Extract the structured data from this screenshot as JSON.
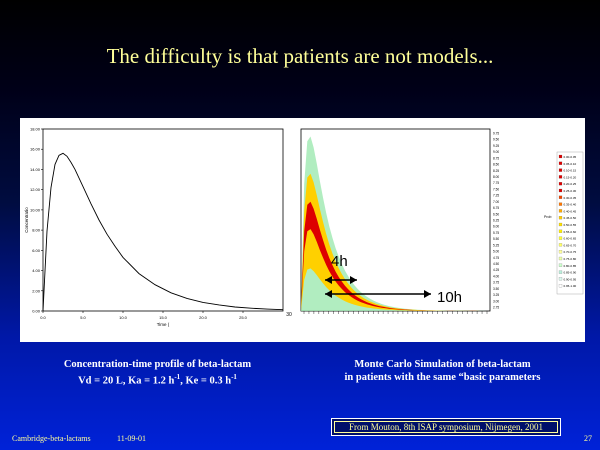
{
  "slide": {
    "title": "The difficulty is that patients are not models...",
    "left_caption_line1": "Concentration-time profile of beta-lactam",
    "left_caption_line2": "Vd = 20 L, Ka = 1.2 h",
    "left_caption_ka_sup": "-1",
    "left_caption_ke": ", Ke = 0.3 h",
    "left_caption_ke_sup": "-1",
    "right_caption_line1": "Monte Carlo Simulation of beta-lactam",
    "right_caption_line2": "in patients with the same “basic parameters",
    "reference": "From Mouton, 8th ISAP symposium, Nijmegen, 2001",
    "footer_left": "Cambridge-beta-lactams",
    "footer_date": "11-09-01",
    "page_number": "27"
  },
  "annotations": {
    "peak_label": "4h",
    "duration_label": "10h"
  },
  "colors": {
    "title": "#ffff99",
    "background_top": "#000000",
    "background_bottom": "#0022d8",
    "curve": "#000000",
    "density_core": "#dd0000",
    "density_mid": "#ffd000",
    "density_outer": "#9ee8b0"
  },
  "chart_data": [
    {
      "type": "line",
      "title": "",
      "xlabel": "Time (",
      "ylabel": "Concentratio",
      "x_ticks": [
        "0.0",
        "5.0",
        "10.0",
        "15.0",
        "20.0",
        "25.0"
      ],
      "y_ticks": [
        "0.00",
        "2.00",
        "4.00",
        "6.00",
        "8.00",
        "10.00",
        "12.00",
        "14.00",
        "16.00",
        "18.00"
      ],
      "x_extra_label": "30",
      "xlim": [
        0,
        30
      ],
      "ylim": [
        0,
        18
      ],
      "x": [
        0,
        0.5,
        1,
        1.5,
        2,
        2.5,
        3,
        3.5,
        4,
        5,
        6,
        7,
        8,
        9,
        10,
        12,
        14,
        16,
        18,
        20,
        22,
        24,
        26,
        28,
        30
      ],
      "y": [
        0,
        7.9,
        12.2,
        14.5,
        15.4,
        15.6,
        15.3,
        14.7,
        14.0,
        12.3,
        10.6,
        9.0,
        7.6,
        6.4,
        5.3,
        3.7,
        2.6,
        1.8,
        1.25,
        0.85,
        0.6,
        0.4,
        0.28,
        0.19,
        0.13
      ],
      "grid": false
    },
    {
      "type": "heatmap",
      "title": "",
      "description_series": "density",
      "x_tick_count": 38,
      "right_axis_ticks": [
        "9.75",
        "9.50",
        "9.25",
        "9.00",
        "8.75",
        "8.50",
        "8.25",
        "8.00",
        "7.75",
        "7.50",
        "7.25",
        "7.00",
        "6.75",
        "6.50",
        "6.25",
        "6.00",
        "5.75",
        "5.50",
        "5.25",
        "5.00",
        "4.75",
        "4.50",
        "4.25",
        "4.00",
        "3.75",
        "3.50",
        "3.25",
        "3.00",
        "2.75"
      ],
      "legend_title": "Prob",
      "legend_entries": [
        "0.00-0.05",
        "0.05-0.10",
        "0.10-0.15",
        "0.15-0.20",
        "0.20-0.25",
        "0.25-0.30",
        "0.30-0.35",
        "0.35-0.40",
        "0.40-0.45",
        "0.45-0.50",
        "0.50-0.55",
        "0.55-0.60",
        "0.60-0.65",
        "0.65-0.70",
        "0.70-0.75",
        "0.75-0.80",
        "0.80-0.85",
        "0.85-0.90",
        "0.90-0.95",
        "0.95-1.00"
      ],
      "legend_colors": [
        "#dd0000",
        "#dd0000",
        "#dd0000",
        "#dd0000",
        "#dd0000",
        "#dd0000",
        "#ee4400",
        "#ff7700",
        "#ffaa00",
        "#ffcc00",
        "#ffe000",
        "#ffee00",
        "#ffff33",
        "#ffff66",
        "#ffff99",
        "#eeffaa",
        "#ccffcc",
        "#bbf0dd",
        "#ddf8ee",
        "#ffffff"
      ],
      "peak_time_h": 4,
      "duration_h": 10
    }
  ]
}
